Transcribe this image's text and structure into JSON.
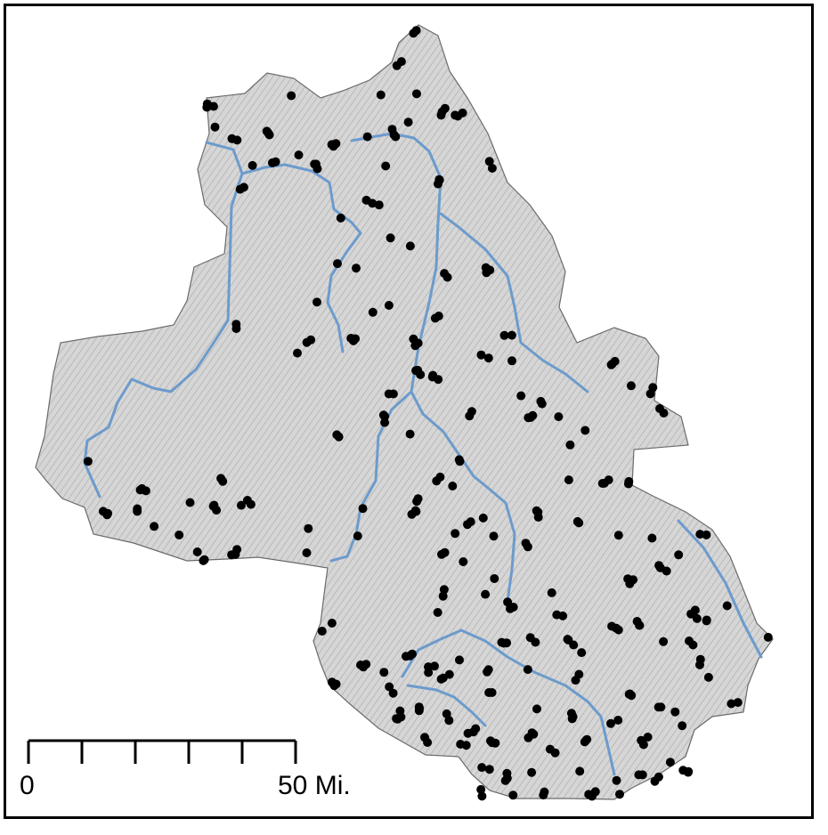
{
  "colors": {
    "terrain": "#cfcfcf",
    "terrain_outline": "#6b6b6b",
    "river": "#6c9bcc",
    "site": "#000000",
    "frame": "#000000"
  },
  "scale_bar": {
    "start_label": "0",
    "end_label": "50 Mi.",
    "ticks": 6
  }
}
